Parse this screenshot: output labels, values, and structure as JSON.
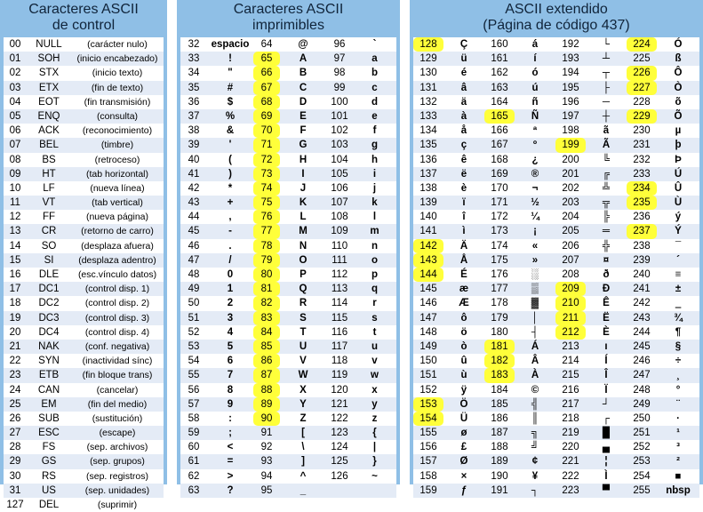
{
  "panels": {
    "control": {
      "title1": "Caracteres ASCII",
      "title2": "de control",
      "rows": [
        [
          "00",
          "NULL",
          "(carácter nulo)"
        ],
        [
          "01",
          "SOH",
          "(inicio encabezado)"
        ],
        [
          "02",
          "STX",
          "(inicio texto)"
        ],
        [
          "03",
          "ETX",
          "(fin de texto)"
        ],
        [
          "04",
          "EOT",
          "(fin transmisión)"
        ],
        [
          "05",
          "ENQ",
          "(consulta)"
        ],
        [
          "06",
          "ACK",
          "(reconocimiento)"
        ],
        [
          "07",
          "BEL",
          "(timbre)"
        ],
        [
          "08",
          "BS",
          "(retroceso)"
        ],
        [
          "09",
          "HT",
          "(tab horizontal)"
        ],
        [
          "10",
          "LF",
          "(nueva línea)"
        ],
        [
          "11",
          "VT",
          "(tab vertical)"
        ],
        [
          "12",
          "FF",
          "(nueva página)"
        ],
        [
          "13",
          "CR",
          "(retorno de carro)"
        ],
        [
          "14",
          "SO",
          "(desplaza afuera)"
        ],
        [
          "15",
          "SI",
          "(desplaza adentro)"
        ],
        [
          "16",
          "DLE",
          "(esc.vínculo datos)"
        ],
        [
          "17",
          "DC1",
          "(control disp. 1)"
        ],
        [
          "18",
          "DC2",
          "(control disp. 2)"
        ],
        [
          "19",
          "DC3",
          "(control disp. 3)"
        ],
        [
          "20",
          "DC4",
          "(control disp. 4)"
        ],
        [
          "21",
          "NAK",
          "(conf. negativa)"
        ],
        [
          "22",
          "SYN",
          "(inactividad sínc)"
        ],
        [
          "23",
          "ETB",
          "(fin bloque trans)"
        ],
        [
          "24",
          "CAN",
          "(cancelar)"
        ],
        [
          "25",
          "EM",
          "(fin del medio)"
        ],
        [
          "26",
          "SUB",
          "(sustitución)"
        ],
        [
          "27",
          "ESC",
          "(escape)"
        ],
        [
          "28",
          "FS",
          "(sep. archivos)"
        ],
        [
          "29",
          "GS",
          "(sep. grupos)"
        ],
        [
          "30",
          "RS",
          "(sep. registros)"
        ],
        [
          "31",
          "US",
          "(sep. unidades)"
        ],
        [
          "127",
          "DEL",
          "(suprimir)"
        ]
      ]
    },
    "printable": {
      "title1": "Caracteres ASCII",
      "title2": "imprimibles",
      "rows": [
        [
          "32",
          "espacio",
          "64",
          "@",
          "96",
          "`"
        ],
        [
          "33",
          "!",
          "65",
          "A",
          "97",
          "a"
        ],
        [
          "34",
          "\"",
          "66",
          "B",
          "98",
          "b"
        ],
        [
          "35",
          "#",
          "67",
          "C",
          "99",
          "c"
        ],
        [
          "36",
          "$",
          "68",
          "D",
          "100",
          "d"
        ],
        [
          "37",
          "%",
          "69",
          "E",
          "101",
          "e"
        ],
        [
          "38",
          "&",
          "70",
          "F",
          "102",
          "f"
        ],
        [
          "39",
          "'",
          "71",
          "G",
          "103",
          "g"
        ],
        [
          "40",
          "(",
          "72",
          "H",
          "104",
          "h"
        ],
        [
          "41",
          ")",
          "73",
          "I",
          "105",
          "i"
        ],
        [
          "42",
          "*",
          "74",
          "J",
          "106",
          "j"
        ],
        [
          "43",
          "+",
          "75",
          "K",
          "107",
          "k"
        ],
        [
          "44",
          ",",
          "76",
          "L",
          "108",
          "l"
        ],
        [
          "45",
          "-",
          "77",
          "M",
          "109",
          "m"
        ],
        [
          "46",
          ".",
          "78",
          "N",
          "110",
          "n"
        ],
        [
          "47",
          "/",
          "79",
          "O",
          "111",
          "o"
        ],
        [
          "48",
          "0",
          "80",
          "P",
          "112",
          "p"
        ],
        [
          "49",
          "1",
          "81",
          "Q",
          "113",
          "q"
        ],
        [
          "50",
          "2",
          "82",
          "R",
          "114",
          "r"
        ],
        [
          "51",
          "3",
          "83",
          "S",
          "115",
          "s"
        ],
        [
          "52",
          "4",
          "84",
          "T",
          "116",
          "t"
        ],
        [
          "53",
          "5",
          "85",
          "U",
          "117",
          "u"
        ],
        [
          "54",
          "6",
          "86",
          "V",
          "118",
          "v"
        ],
        [
          "55",
          "7",
          "87",
          "W",
          "119",
          "w"
        ],
        [
          "56",
          "8",
          "88",
          "X",
          "120",
          "x"
        ],
        [
          "57",
          "9",
          "89",
          "Y",
          "121",
          "y"
        ],
        [
          "58",
          ":",
          "90",
          "Z",
          "122",
          "z"
        ],
        [
          "59",
          ";",
          "91",
          "[",
          "123",
          "{"
        ],
        [
          "60",
          "<",
          "92",
          "\\",
          "124",
          "|"
        ],
        [
          "61",
          "=",
          "93",
          "]",
          "125",
          "}"
        ],
        [
          "62",
          ">",
          "94",
          "^",
          "126",
          "~"
        ],
        [
          "63",
          "?",
          "95",
          "_",
          "",
          ""
        ]
      ],
      "highlight_col": 2,
      "highlight_rows": [
        1,
        2,
        3,
        4,
        5,
        6,
        7,
        8,
        9,
        10,
        11,
        12,
        13,
        14,
        15,
        16,
        17,
        18,
        19,
        20,
        21,
        22,
        23,
        24,
        25,
        26
      ]
    },
    "extended": {
      "title1": "ASCII extendido",
      "title2": "(Página de código 437)",
      "rows": [
        [
          "128",
          "Ç",
          "160",
          "á",
          "192",
          "└",
          "224",
          "Ó"
        ],
        [
          "129",
          "ü",
          "161",
          "í",
          "193",
          "┴",
          "225",
          "ß"
        ],
        [
          "130",
          "é",
          "162",
          "ó",
          "194",
          "┬",
          "226",
          "Ô"
        ],
        [
          "131",
          "â",
          "163",
          "ú",
          "195",
          "├",
          "227",
          "Ò"
        ],
        [
          "132",
          "ä",
          "164",
          "ñ",
          "196",
          "─",
          "228",
          "õ"
        ],
        [
          "133",
          "à",
          "165",
          "Ñ",
          "197",
          "┼",
          "229",
          "Õ"
        ],
        [
          "134",
          "å",
          "166",
          "ª",
          "198",
          "ã",
          "230",
          "µ"
        ],
        [
          "135",
          "ç",
          "167",
          "º",
          "199",
          "Ã",
          "231",
          "þ"
        ],
        [
          "136",
          "ê",
          "168",
          "¿",
          "200",
          "╚",
          "232",
          "Þ"
        ],
        [
          "137",
          "ë",
          "169",
          "®",
          "201",
          "╔",
          "233",
          "Ú"
        ],
        [
          "138",
          "è",
          "170",
          "¬",
          "202",
          "╩",
          "234",
          "Û"
        ],
        [
          "139",
          "ï",
          "171",
          "½",
          "203",
          "╦",
          "235",
          "Ù"
        ],
        [
          "140",
          "î",
          "172",
          "¼",
          "204",
          "╠",
          "236",
          "ý"
        ],
        [
          "141",
          "ì",
          "173",
          "¡",
          "205",
          "═",
          "237",
          "Ý"
        ],
        [
          "142",
          "Ä",
          "174",
          "«",
          "206",
          "╬",
          "238",
          "¯"
        ],
        [
          "143",
          "Å",
          "175",
          "»",
          "207",
          "¤",
          "239",
          "´"
        ],
        [
          "144",
          "É",
          "176",
          "░",
          "208",
          "ð",
          "240",
          "≡"
        ],
        [
          "145",
          "æ",
          "177",
          "▒",
          "209",
          "Ð",
          "241",
          "±"
        ],
        [
          "146",
          "Æ",
          "178",
          "▓",
          "210",
          "Ê",
          "242",
          "‗"
        ],
        [
          "147",
          "ô",
          "179",
          "│",
          "211",
          "Ë",
          "243",
          "¾"
        ],
        [
          "148",
          "ö",
          "180",
          "┤",
          "212",
          "È",
          "244",
          "¶"
        ],
        [
          "149",
          "ò",
          "181",
          "Á",
          "213",
          "ı",
          "245",
          "§"
        ],
        [
          "150",
          "û",
          "182",
          "Â",
          "214",
          "Í",
          "246",
          "÷"
        ],
        [
          "151",
          "ù",
          "183",
          "À",
          "215",
          "Î",
          "247",
          "¸"
        ],
        [
          "152",
          "ÿ",
          "184",
          "©",
          "216",
          "Ï",
          "248",
          "°"
        ],
        [
          "153",
          "Ö",
          "185",
          "╣",
          "217",
          "┘",
          "249",
          "¨"
        ],
        [
          "154",
          "Ü",
          "186",
          "║",
          "218",
          "┌",
          "250",
          "·"
        ],
        [
          "155",
          "ø",
          "187",
          "╗",
          "219",
          "█",
          "251",
          "¹"
        ],
        [
          "156",
          "£",
          "188",
          "╝",
          "220",
          "▄",
          "252",
          "³"
        ],
        [
          "157",
          "Ø",
          "189",
          "¢",
          "221",
          "¦",
          "253",
          "²"
        ],
        [
          "158",
          "×",
          "190",
          "¥",
          "222",
          "Ì",
          "254",
          "■"
        ],
        [
          "159",
          "ƒ",
          "191",
          "┐",
          "223",
          "▀",
          "255",
          "nbsp"
        ]
      ],
      "highlights": [
        [
          0,
          0
        ],
        [
          14,
          0
        ],
        [
          15,
          0
        ],
        [
          16,
          0
        ],
        [
          25,
          0
        ],
        [
          26,
          0
        ],
        [
          5,
          2
        ],
        [
          21,
          2
        ],
        [
          22,
          2
        ],
        [
          23,
          2
        ],
        [
          7,
          4
        ],
        [
          17,
          4
        ],
        [
          18,
          4
        ],
        [
          19,
          4
        ],
        [
          20,
          4
        ],
        [
          0,
          6
        ],
        [
          2,
          6
        ],
        [
          3,
          6
        ],
        [
          5,
          6
        ],
        [
          10,
          6
        ],
        [
          11,
          6
        ],
        [
          13,
          6
        ]
      ]
    }
  },
  "colors": {
    "panel": "#8fbfe6",
    "row_alt": "#e4ebf6",
    "highlight": "#ffff3a",
    "title_text": "#10243a"
  }
}
